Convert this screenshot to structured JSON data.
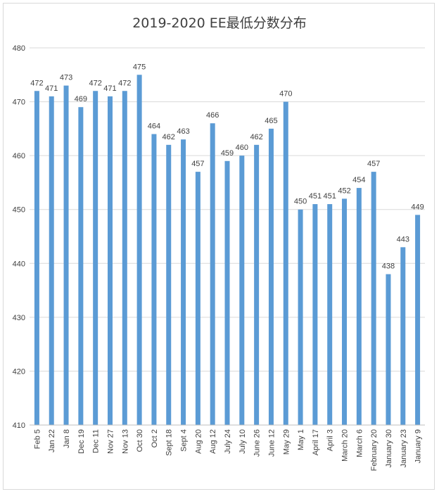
{
  "chart_data": {
    "type": "bar",
    "title": "2019-2020 EE最低分数分布",
    "xlabel": "",
    "ylabel": "",
    "ylim": [
      410,
      480
    ],
    "yticks": [
      410,
      420,
      430,
      440,
      450,
      460,
      470,
      480
    ],
    "grid": true,
    "legend": "none",
    "bar_color": "#5b9bd5",
    "categories": [
      "Feb 5",
      "Jan 22",
      "Jan 8",
      "Dec 19",
      "Dec 11",
      "Nov 27",
      "Nov 13",
      "Oct 30",
      "Oct 2",
      "Sept 18",
      "Sept 4",
      "Aug 20",
      "Aug 12",
      "July 24",
      "July 10",
      "June 26",
      "June 12",
      "May 29",
      "May 1",
      "April 17",
      "April 3",
      "March 20",
      "March 6",
      "February 20",
      "January 30",
      "January 23",
      "January 9"
    ],
    "values": [
      472,
      471,
      473,
      469,
      472,
      471,
      472,
      475,
      464,
      462,
      463,
      457,
      466,
      459,
      460,
      462,
      465,
      470,
      450,
      451,
      451,
      452,
      454,
      457,
      438,
      443,
      449
    ]
  }
}
